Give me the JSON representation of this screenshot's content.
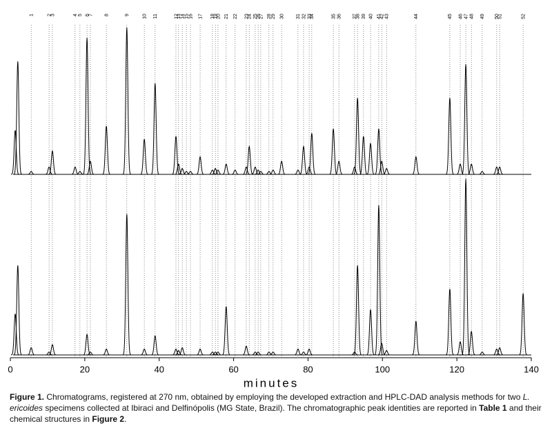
{
  "chart_data": {
    "type": "chromatogram",
    "x": [
      1.3,
      2.0,
      5.6,
      10.4,
      11.3,
      17.4,
      18.7,
      20.6,
      21.5,
      25.8,
      31.3,
      36.0,
      38.9,
      44.5,
      45.2,
      46.2,
      47.3,
      48.4,
      51.0,
      54.3,
      55.1,
      55.8,
      58.0,
      60.4,
      63.4,
      64.2,
      65.8,
      66.6,
      67.3,
      69.5,
      70.6,
      72.9,
      77.3,
      78.8,
      80.3,
      81.0,
      86.8,
      88.3,
      92.5,
      93.3,
      94.9,
      96.8,
      99.0,
      99.8,
      101.1,
      109.0,
      118.1,
      120.9,
      122.4,
      123.9,
      126.8,
      130.7,
      131.5,
      137.8
    ],
    "peak_labels": [
      null,
      null,
      1,
      2,
      3,
      4,
      5,
      6,
      7,
      8,
      9,
      10,
      11,
      12,
      13,
      14,
      15,
      16,
      17,
      18,
      19,
      20,
      21,
      22,
      23,
      24,
      25,
      26,
      27,
      28,
      29,
      30,
      31,
      32,
      33,
      34,
      35,
      36,
      37,
      38,
      39,
      40,
      41,
      42,
      43,
      44,
      45,
      46,
      47,
      48,
      49,
      50,
      51,
      52
    ],
    "series": [
      {
        "color": "#000000",
        "values": [
          30,
          77,
          2,
          5,
          16,
          5,
          2,
          93,
          9,
          33,
          100,
          24,
          62,
          26,
          7,
          4,
          2,
          2,
          12,
          3,
          4,
          3,
          7,
          3,
          5,
          19,
          5,
          3,
          2,
          2,
          3,
          9,
          3,
          19,
          5,
          28,
          31,
          9,
          5,
          52,
          26,
          21,
          31,
          9,
          4,
          12,
          52,
          7,
          75,
          7,
          2,
          5,
          5,
          0
        ]
      },
      {
        "color": "#000000",
        "values": [
          28,
          61,
          5,
          2,
          7,
          0,
          0,
          14,
          2,
          4,
          96,
          4,
          13,
          4,
          3,
          5,
          0,
          0,
          4,
          2,
          2,
          2,
          33,
          0,
          6,
          0,
          2,
          2,
          0,
          2,
          2,
          0,
          4,
          2,
          4,
          0,
          0,
          0,
          2,
          61,
          0,
          31,
          102,
          8,
          3,
          23,
          45,
          9,
          120,
          16,
          2,
          4,
          5,
          42
        ]
      }
    ],
    "xlim": [
      0,
      140
    ],
    "xticks": [
      0,
      20,
      40,
      60,
      80,
      100,
      120,
      140
    ],
    "xlabel": "minutes",
    "caption": [
      "Figure 1.",
      "  Chromatograms, registered at 270 nm, obtained by employing the developed extraction and HPLC-DAD analysis methods for two ",
      "L. ericoides",
      " specimens collected at Ibiraci and Delfinópolis (MG State, Brazil). The chromatographic peak identities are reported in ",
      "Table 1",
      " and their chemical structures in ",
      "Figure 2",
      "."
    ]
  }
}
